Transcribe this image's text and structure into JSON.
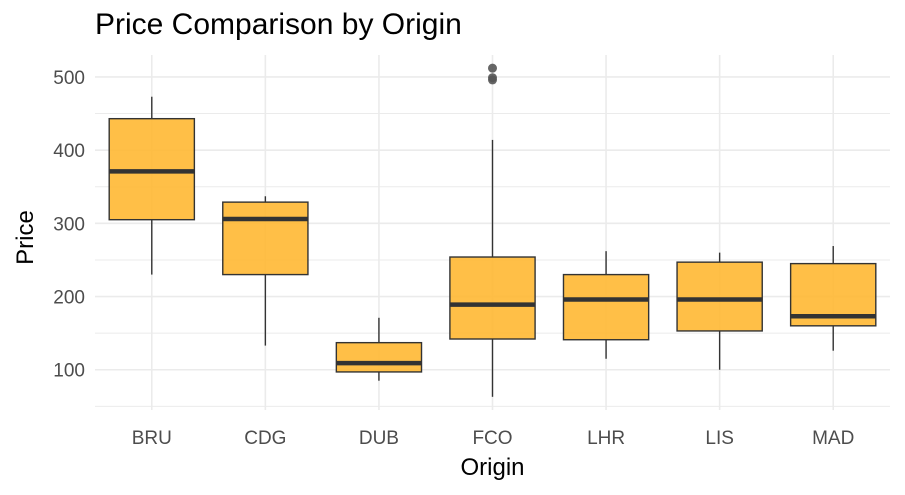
{
  "chart_data": {
    "type": "boxplot",
    "title": "Price Comparison by Origin",
    "xlabel": "Origin",
    "ylabel": "Price",
    "ylim": [
      45,
      530
    ],
    "yticks": [
      100,
      200,
      300,
      400,
      500
    ],
    "grid": true,
    "legend": "none",
    "colors": {
      "box_fill": "#ffb833",
      "box_stroke": "#333333",
      "median": "#333333",
      "outlier": "#555555",
      "grid": "#ebebeb"
    },
    "categories": [
      "BRU",
      "CDG",
      "DUB",
      "FCO",
      "LHR",
      "LIS",
      "MAD"
    ],
    "boxes": [
      {
        "category": "BRU",
        "whisker_low": 230,
        "q1": 305,
        "median": 371,
        "q3": 443,
        "whisker_high": 473,
        "outliers": []
      },
      {
        "category": "CDG",
        "whisker_low": 133,
        "q1": 230,
        "median": 306,
        "q3": 329,
        "whisker_high": 337,
        "outliers": []
      },
      {
        "category": "DUB",
        "whisker_low": 85,
        "q1": 97,
        "median": 109,
        "q3": 137,
        "whisker_high": 171,
        "outliers": []
      },
      {
        "category": "FCO",
        "whisker_low": 63,
        "q1": 142,
        "median": 189,
        "q3": 254,
        "whisker_high": 414,
        "outliers": [
          496,
          499,
          512
        ]
      },
      {
        "category": "LHR",
        "whisker_low": 115,
        "q1": 141,
        "median": 196,
        "q3": 230,
        "whisker_high": 262,
        "outliers": []
      },
      {
        "category": "LIS",
        "whisker_low": 100,
        "q1": 153,
        "median": 196,
        "q3": 247,
        "whisker_high": 260,
        "outliers": []
      },
      {
        "category": "MAD",
        "whisker_low": 126,
        "q1": 160,
        "median": 173,
        "q3": 245,
        "whisker_high": 269,
        "outliers": []
      }
    ]
  }
}
